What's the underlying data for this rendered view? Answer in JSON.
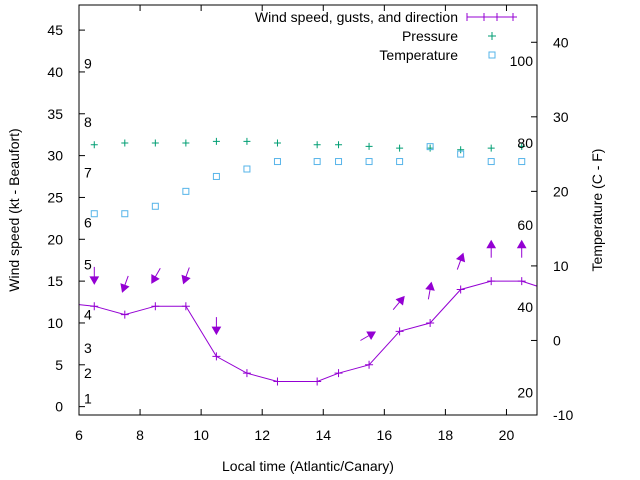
{
  "chart_data": {
    "type": "line",
    "xlabel": "Local time (Atlantic/Canary)",
    "ylabel": "Wind speed (kt - Beaufort)",
    "y2label": "Temperature (C - F)",
    "xlim": [
      6,
      21
    ],
    "ylim": [
      -1,
      48
    ],
    "y2lim": [
      -10,
      45
    ],
    "grid": false,
    "legend_position": "top-right",
    "x_ticks": [
      6,
      8,
      10,
      12,
      14,
      16,
      18,
      20
    ],
    "y_ticks": [
      0,
      5,
      10,
      15,
      20,
      25,
      30,
      35,
      40,
      45
    ],
    "y2_ticks": [
      -10,
      0,
      10,
      20,
      30,
      40
    ],
    "beaufort_labels": [
      {
        "label": "1",
        "y": 1
      },
      {
        "label": "2",
        "y": 4
      },
      {
        "label": "3",
        "y": 7
      },
      {
        "label": "4",
        "y": 11
      },
      {
        "label": "5",
        "y": 17
      },
      {
        "label": "6",
        "y": 22
      },
      {
        "label": "7",
        "y": 28
      },
      {
        "label": "8",
        "y": 34
      },
      {
        "label": "9",
        "y": 41
      }
    ],
    "fahrenheit_labels": [
      {
        "label": "20",
        "t": -7
      },
      {
        "label": "40",
        "t": 4.5
      },
      {
        "label": "60",
        "t": 15.5
      },
      {
        "label": "80",
        "t": 26.5
      },
      {
        "label": "100",
        "t": 37.5
      }
    ],
    "series": [
      {
        "name": "Wind speed, gusts, and direction",
        "color": "#9400d3",
        "x": [
          6,
          6.5,
          7.5,
          8.5,
          9.5,
          10.5,
          11.5,
          12.5,
          13.5,
          13.8,
          14.5,
          15.5,
          16.5,
          17.5,
          18.5,
          19.5,
          20.5,
          21
        ],
        "values": [
          12.2,
          12,
          11,
          12,
          12,
          6,
          4,
          3,
          3,
          3,
          4,
          5,
          9,
          10,
          14,
          15,
          15,
          14.4
        ],
        "markers_x": [
          6.5,
          7.5,
          8.5,
          9.5,
          10.5,
          11.5,
          12.5,
          13.8,
          14.5,
          15.5,
          16.5,
          17.5,
          18.5,
          19.5,
          20.5
        ]
      },
      {
        "name": "Pressure",
        "color": "#009e73",
        "x": [
          6.5,
          7.5,
          8.5,
          9.5,
          10.5,
          11.5,
          12.5,
          13.8,
          14.5,
          15.5,
          16.5,
          17.5,
          18.5,
          19.5,
          20.5
        ],
        "values": [
          31.3,
          31.5,
          31.5,
          31.5,
          31.7,
          31.7,
          31.5,
          31.3,
          31.3,
          31.1,
          30.9,
          30.9,
          30.7,
          30.9,
          31.1
        ]
      },
      {
        "name": "Temperature",
        "color": "#56b4e9",
        "x": [
          6.5,
          7.5,
          8.5,
          9.5,
          10.5,
          11.5,
          12.5,
          13.8,
          14.5,
          15.5,
          16.5,
          17.5,
          18.5,
          19.5,
          20.5
        ],
        "values": [
          17,
          17,
          18,
          20,
          22,
          23,
          24,
          24,
          24,
          24,
          24,
          26,
          25,
          24,
          24
        ]
      }
    ],
    "direction_arrows": {
      "color": "#9400d3",
      "points": [
        {
          "x": 6.5,
          "y": 15.5,
          "dir": 0
        },
        {
          "x": 7.5,
          "y": 14.5,
          "dir": 20
        },
        {
          "x": 8.5,
          "y": 15.5,
          "dir": 30
        },
        {
          "x": 9.5,
          "y": 15.5,
          "dir": 20
        },
        {
          "x": 10.5,
          "y": 9.5,
          "dir": 0
        },
        {
          "x": 15.5,
          "y": 8.5,
          "dir": 240
        },
        {
          "x": 16.5,
          "y": 12.5,
          "dir": 220
        },
        {
          "x": 17.5,
          "y": 14,
          "dir": 190
        },
        {
          "x": 18.5,
          "y": 17.5,
          "dir": 200
        },
        {
          "x": 19.5,
          "y": 19,
          "dir": 180
        },
        {
          "x": 20.5,
          "y": 19,
          "dir": 180
        }
      ]
    }
  }
}
